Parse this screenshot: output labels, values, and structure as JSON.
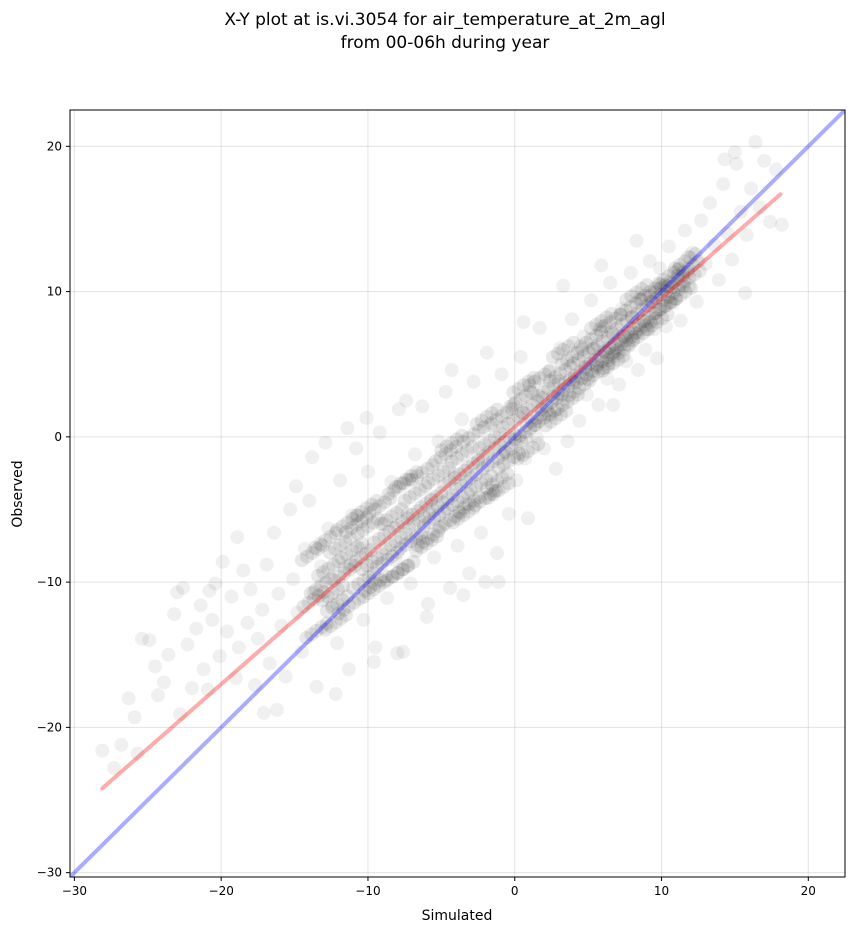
{
  "chart_data": {
    "type": "scatter",
    "title": "X-Y plot at is.vi.3054 for air_temperature_at_2m_agl",
    "subtitle": "from 00-06h during year",
    "xlabel": "Simulated",
    "ylabel": "Observed",
    "xlim": [
      -30.3,
      22.5
    ],
    "ylim": [
      -30.3,
      22.5
    ],
    "xticks": [
      -30,
      -20,
      -10,
      0,
      10,
      20
    ],
    "yticks": [
      -30,
      -20,
      -10,
      0,
      10,
      20
    ],
    "xtick_labels": [
      "−30",
      "−20",
      "−10",
      "0",
      "10",
      "20"
    ],
    "ytick_labels": [
      "−30",
      "−20",
      "−10",
      "0",
      "10",
      "20"
    ],
    "grid": true,
    "point_color": "#000000",
    "point_alpha": 0.06,
    "reference_line": {
      "name": "",
      "color": "#0000ff",
      "alpha": 0.33,
      "slope": 1,
      "intercept": 0
    },
    "fit_line": {
      "name": "",
      "color": "#ff0000",
      "alpha": 0.33,
      "x": [
        -28.1,
        18.1
      ],
      "y": [
        -24.2,
        16.7
      ]
    },
    "points": [
      [
        -28.1,
        -21.6
      ],
      [
        -26.3,
        -18.0
      ],
      [
        -25.9,
        -19.3
      ],
      [
        -25.4,
        -13.9
      ],
      [
        -24.9,
        -14.0
      ],
      [
        -24.5,
        -15.8
      ],
      [
        -24.3,
        -17.8
      ],
      [
        -23.9,
        -16.9
      ],
      [
        -23.6,
        -15.0
      ],
      [
        -23.2,
        -12.2
      ],
      [
        -23.0,
        -10.7
      ],
      [
        -22.8,
        -19.1
      ],
      [
        -22.6,
        -10.4
      ],
      [
        -22.3,
        -14.3
      ],
      [
        -22.0,
        -17.3
      ],
      [
        -21.7,
        -13.2
      ],
      [
        -21.4,
        -11.6
      ],
      [
        -21.2,
        -16.0
      ],
      [
        -20.9,
        -17.4
      ],
      [
        -20.6,
        -12.6
      ],
      [
        -20.4,
        -10.1
      ],
      [
        -20.1,
        -15.1
      ],
      [
        -19.9,
        -8.6
      ],
      [
        -19.6,
        -13.4
      ],
      [
        -19.3,
        -11.0
      ],
      [
        -19.0,
        -16.6
      ],
      [
        -18.8,
        -14.5
      ],
      [
        -18.5,
        -9.2
      ],
      [
        -18.2,
        -12.8
      ],
      [
        -18.0,
        -10.5
      ],
      [
        -17.7,
        -17.1
      ],
      [
        -17.5,
        -13.9
      ],
      [
        -17.2,
        -11.9
      ],
      [
        -16.9,
        -8.8
      ],
      [
        -16.7,
        -15.6
      ],
      [
        -16.4,
        -6.6
      ],
      [
        -16.1,
        -10.8
      ],
      [
        -15.9,
        -13.0
      ],
      [
        -15.6,
        -16.5
      ],
      [
        -15.3,
        -5.0
      ],
      [
        -15.1,
        -9.8
      ],
      [
        -14.8,
        -12.1
      ],
      [
        -14.5,
        -14.8
      ],
      [
        -14.3,
        -7.7
      ],
      [
        -14.0,
        -4.4
      ],
      [
        -13.7,
        -10.7
      ],
      [
        -13.5,
        -17.2
      ],
      [
        -13.2,
        -8.9
      ],
      [
        -12.9,
        -0.4
      ],
      [
        -12.7,
        -6.3
      ],
      [
        -12.4,
        -11.6
      ],
      [
        -12.1,
        -14.2
      ],
      [
        -11.9,
        -3.0
      ],
      [
        -11.6,
        -9.0
      ],
      [
        -11.3,
        -16.0
      ],
      [
        -11.1,
        -5.4
      ],
      [
        -10.8,
        -0.8
      ],
      [
        -10.5,
        -7.7
      ],
      [
        -10.3,
        -12.6
      ],
      [
        -10.0,
        -2.4
      ],
      [
        -9.7,
        -9.9
      ],
      [
        -9.5,
        -14.5
      ],
      [
        -9.2,
        0.3
      ],
      [
        -8.9,
        -6.0
      ],
      [
        -8.7,
        -11.1
      ],
      [
        -8.4,
        -3.1
      ],
      [
        -8.1,
        -8.5
      ],
      [
        -7.9,
        1.9
      ],
      [
        -7.6,
        -14.8
      ],
      [
        -7.3,
        -5.3
      ],
      [
        -7.1,
        -10.1
      ],
      [
        -6.8,
        -1.2
      ],
      [
        -6.5,
        -7.0
      ],
      [
        -6.3,
        2.1
      ],
      [
        -6.0,
        -12.4
      ],
      [
        -5.7,
        -4.3
      ],
      [
        -5.5,
        -8.3
      ],
      [
        -5.2,
        -0.3
      ],
      [
        -4.9,
        -6.1
      ],
      [
        -4.7,
        3.1
      ],
      [
        -4.4,
        -10.4
      ],
      [
        -4.1,
        -2.6
      ],
      [
        -3.9,
        -7.5
      ],
      [
        -3.6,
        1.2
      ],
      [
        -3.3,
        -4.6
      ],
      [
        -3.1,
        -9.4
      ],
      [
        -2.8,
        3.8
      ],
      [
        -2.5,
        -1.7
      ],
      [
        -2.3,
        -6.6
      ],
      [
        -2.0,
        -10.0
      ],
      [
        -1.7,
        0.8
      ],
      [
        -1.5,
        -3.7
      ],
      [
        -1.2,
        -8.0
      ],
      [
        -0.9,
        4.3
      ],
      [
        -0.7,
        -1.0
      ],
      [
        -0.4,
        -5.3
      ],
      [
        -0.1,
        2.2
      ],
      [
        0.1,
        -3.0
      ],
      [
        0.4,
        5.5
      ],
      [
        0.7,
        -1.5
      ],
      [
        0.9,
        -5.6
      ],
      [
        1.2,
        3.0
      ],
      [
        1.5,
        0.0
      ],
      [
        1.7,
        7.5
      ],
      [
        2.0,
        -0.8
      ],
      [
        2.3,
        4.5
      ],
      [
        2.5,
        1.5
      ],
      [
        2.8,
        -2.2
      ],
      [
        3.1,
        6.1
      ],
      [
        3.3,
        2.6
      ],
      [
        3.6,
        -0.3
      ],
      [
        3.9,
        8.1
      ],
      [
        4.1,
        4.0
      ],
      [
        4.4,
        1.1
      ],
      [
        4.7,
        6.9
      ],
      [
        4.9,
        2.9
      ],
      [
        5.2,
        9.4
      ],
      [
        5.5,
        4.9
      ],
      [
        5.7,
        2.2
      ],
      [
        6.0,
        7.6
      ],
      [
        6.3,
        4.0
      ],
      [
        6.5,
        10.6
      ],
      [
        6.8,
        5.8
      ],
      [
        7.1,
        3.6
      ],
      [
        7.3,
        8.8
      ],
      [
        7.6,
        5.2
      ],
      [
        7.9,
        11.3
      ],
      [
        8.1,
        6.7
      ],
      [
        8.4,
        4.6
      ],
      [
        8.7,
        9.5
      ],
      [
        8.9,
        6.0
      ],
      [
        9.2,
        12.1
      ],
      [
        9.5,
        7.4
      ],
      [
        9.7,
        5.4
      ],
      [
        10.0,
        10.3
      ],
      [
        10.3,
        7.6
      ],
      [
        10.5,
        13.1
      ],
      [
        10.8,
        9.2
      ],
      [
        11.1,
        11.5
      ],
      [
        11.3,
        8.0
      ],
      [
        11.6,
        14.2
      ],
      [
        11.9,
        10.4
      ],
      [
        12.1,
        12.7
      ],
      [
        12.4,
        9.3
      ],
      [
        12.7,
        14.9
      ],
      [
        13.0,
        11.9
      ],
      [
        13.3,
        16.1
      ],
      [
        13.6,
        13.2
      ],
      [
        13.9,
        10.8
      ],
      [
        14.2,
        17.4
      ],
      [
        14.5,
        14.0
      ],
      [
        14.8,
        12.2
      ],
      [
        15.1,
        18.8
      ],
      [
        15.4,
        15.5
      ],
      [
        15.8,
        13.9
      ],
      [
        16.1,
        17.1
      ],
      [
        16.4,
        20.3
      ],
      [
        16.7,
        15.8
      ],
      [
        17.0,
        19.0
      ],
      [
        17.4,
        14.8
      ],
      [
        17.8,
        18.4
      ],
      [
        18.2,
        14.6
      ],
      [
        14.3,
        19.1
      ],
      [
        15.0,
        19.6
      ],
      [
        9.9,
        11.6
      ],
      [
        11.8,
        12.4
      ],
      [
        15.7,
        9.9
      ],
      [
        6.7,
        2.2
      ],
      [
        -1.1,
        -10.0
      ],
      [
        -20.8,
        -10.6
      ],
      [
        -25.7,
        -21.8
      ],
      [
        -27.3,
        -22.8
      ],
      [
        -26.8,
        -21.2
      ],
      [
        -17.1,
        -19.0
      ],
      [
        -16.2,
        -18.8
      ],
      [
        -12.2,
        -17.7
      ],
      [
        -9.6,
        -15.5
      ],
      [
        -8.0,
        -14.9
      ],
      [
        -5.9,
        -11.5
      ],
      [
        -3.5,
        -10.9
      ],
      [
        -13.8,
        -1.4
      ],
      [
        -11.4,
        0.6
      ],
      [
        -7.4,
        2.5
      ],
      [
        -4.3,
        4.6
      ],
      [
        -1.9,
        5.8
      ],
      [
        0.6,
        7.9
      ],
      [
        3.3,
        10.4
      ],
      [
        5.9,
        11.8
      ],
      [
        8.3,
        13.5
      ],
      [
        -18.9,
        -6.9
      ],
      [
        -14.9,
        -3.4
      ],
      [
        -10.1,
        1.3
      ]
    ]
  }
}
